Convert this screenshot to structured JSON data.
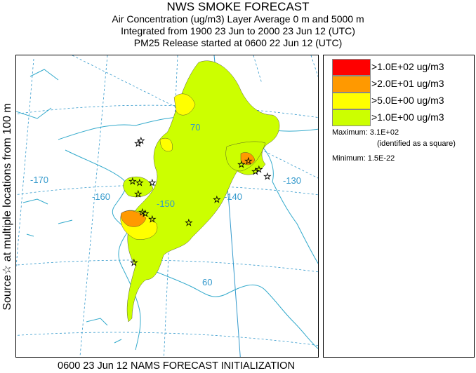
{
  "header": {
    "title": "NWS SMOKE FORECAST",
    "line2": "Air Concentration (ug/m3) Layer Average    0 m and  5000 m",
    "line3": "Integrated from 1900 23 Jun to 2000 23 Jun 12 (UTC)",
    "line4": "PM25 Release started at 0600 22 Jun 12 (UTC)"
  },
  "side_label": "Source☆   at multiple locations   from   100 m",
  "map": {
    "grid_labels": {
      "lon_170": "-170",
      "lon_160": "-160",
      "lon_150": "-150",
      "lon_140": "-140",
      "lon_130": "-130",
      "lat_70": "70",
      "lat_60": "60"
    },
    "colors": {
      "coast": "#33aacc",
      "grid": "#3399cc",
      "level1": "#ccff00",
      "level2": "#ffff00",
      "level3": "#ff9900",
      "level4": "#ff0000"
    }
  },
  "legend": {
    "levels": [
      {
        "label": ">1.0E+02 ug/m3",
        "color": "#ff0000"
      },
      {
        "label": ">2.0E+01 ug/m3",
        "color": "#ff9900"
      },
      {
        "label": ">5.0E+00 ug/m3",
        "color": "#ffff00"
      },
      {
        "label": ">1.0E+00 ug/m3",
        "color": "#ccff00"
      }
    ],
    "maximum": "Maximum: 3.1E+02",
    "maximum_note": "(identified as a square)",
    "minimum": "Minimum: 1.5E-22"
  },
  "footer": "0600 23 Jun 12 NAMS FORECAST INITIALIZATION"
}
